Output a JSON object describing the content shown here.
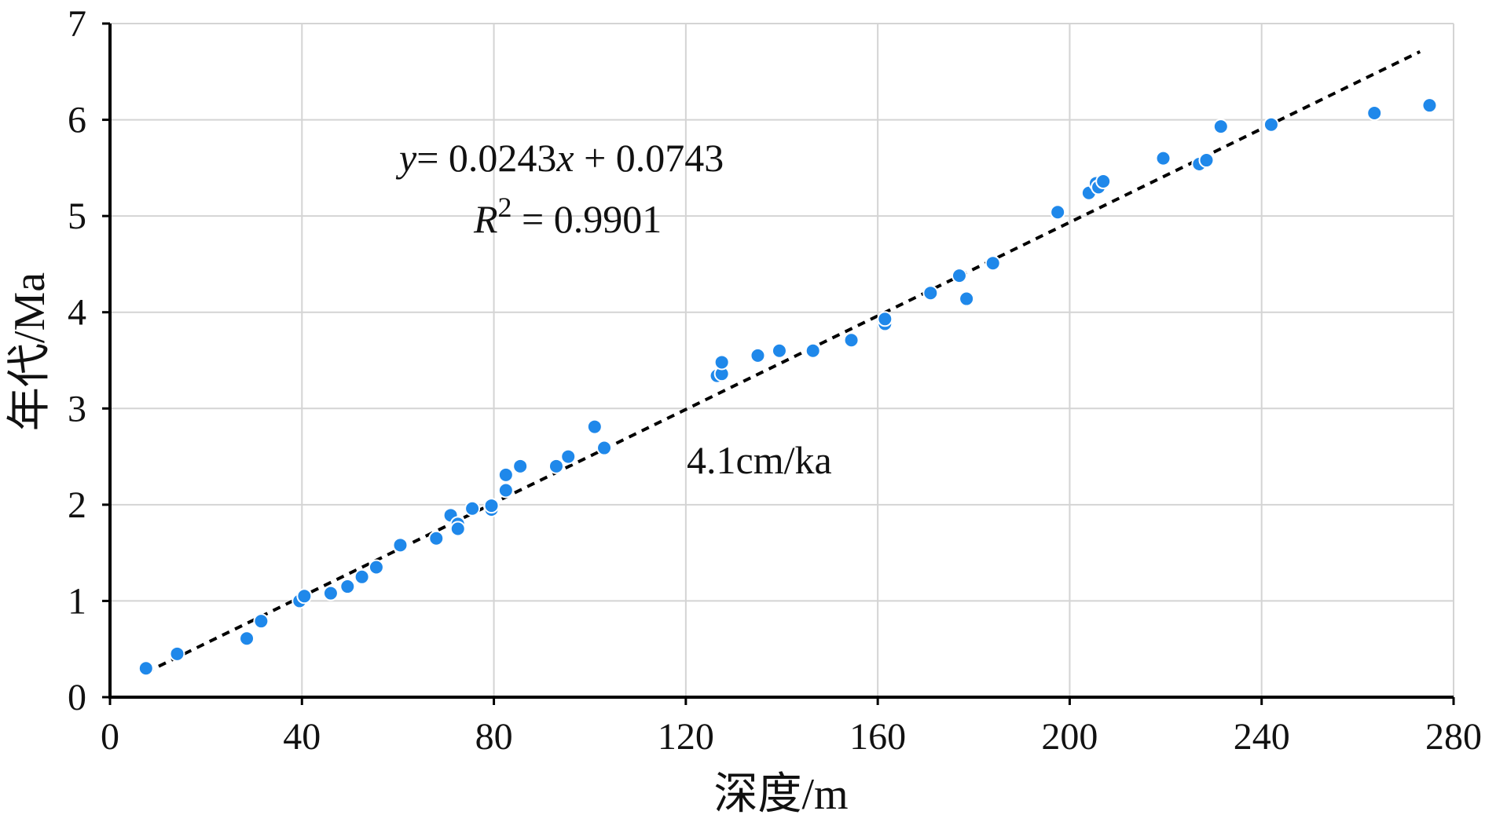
{
  "chart_data": {
    "type": "scatter",
    "title": "",
    "xlabel": "深度/m",
    "ylabel": "年代/Ma",
    "xlim": [
      0,
      280
    ],
    "ylim": [
      0,
      7
    ],
    "xticks": [
      0,
      40,
      80,
      120,
      160,
      200,
      240,
      280
    ],
    "yticks": [
      0,
      1,
      2,
      3,
      4,
      5,
      6,
      7
    ],
    "grid": true,
    "point_color": "#1f88ea",
    "series": [
      {
        "points": [
          [
            7.5,
            0.3
          ],
          [
            14,
            0.45
          ],
          [
            28.5,
            0.61
          ],
          [
            31.5,
            0.79
          ],
          [
            39.5,
            1.0
          ],
          [
            40.5,
            1.05
          ],
          [
            46,
            1.08
          ],
          [
            49.5,
            1.15
          ],
          [
            52.5,
            1.25
          ],
          [
            55.5,
            1.35
          ],
          [
            60.5,
            1.58
          ],
          [
            68,
            1.65
          ],
          [
            71,
            1.89
          ],
          [
            72.5,
            1.8
          ],
          [
            72.5,
            1.75
          ],
          [
            75.5,
            1.96
          ],
          [
            79.5,
            1.95
          ],
          [
            79.5,
            1.99
          ],
          [
            82.5,
            2.15
          ],
          [
            82.5,
            2.31
          ],
          [
            85.5,
            2.4
          ],
          [
            93,
            2.4
          ],
          [
            95.5,
            2.5
          ],
          [
            101,
            2.81
          ],
          [
            103,
            2.59
          ],
          [
            126.5,
            3.34
          ],
          [
            127.5,
            3.36
          ],
          [
            127.5,
            3.48
          ],
          [
            135,
            3.55
          ],
          [
            139.5,
            3.6
          ],
          [
            146.5,
            3.6
          ],
          [
            154.5,
            3.71
          ],
          [
            161.5,
            3.88
          ],
          [
            161.5,
            3.93
          ],
          [
            171,
            4.2
          ],
          [
            177,
            4.38
          ],
          [
            178.5,
            4.14
          ],
          [
            184,
            4.51
          ],
          [
            197.5,
            5.04
          ],
          [
            204,
            5.24
          ],
          [
            205.5,
            5.34
          ],
          [
            206,
            5.3
          ],
          [
            207,
            5.36
          ],
          [
            219.5,
            5.6
          ],
          [
            227,
            5.54
          ],
          [
            228.5,
            5.58
          ],
          [
            231.5,
            5.93
          ],
          [
            242,
            5.95
          ],
          [
            263.5,
            6.07
          ],
          [
            275,
            6.15
          ]
        ]
      }
    ],
    "trendline": {
      "slope": 0.0243,
      "intercept": 0.0743,
      "x_range": [
        7.5,
        273
      ],
      "style": "dashed"
    },
    "annotations": {
      "equation_y": "y",
      "equation_rest": "= 0.0243",
      "equation_x": "x",
      "equation_tail": " + 0.0743",
      "r2_label": "R",
      "r2_exp": "2",
      "r2_value": " = 0.9901",
      "rate_label": "4.1cm/ka"
    }
  }
}
